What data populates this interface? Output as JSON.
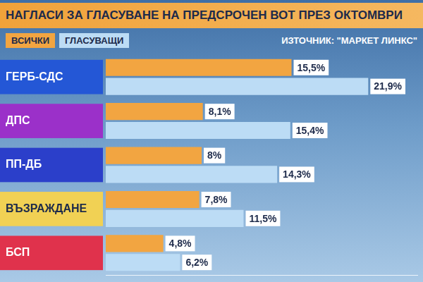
{
  "chart_data": {
    "type": "bar",
    "orientation": "horizontal",
    "title": "НАГЛАСИ ЗА ГЛАСУВАНЕ НА ПРЕДСРОЧЕН ВОТ ПРЕЗ ОКТОМВРИ",
    "source": "ИЗТОЧНИК: \"МАРКЕТ ЛИНКС\"",
    "categories": [
      "ГЕРБ-СДС",
      "ДПС",
      "ПП-ДБ",
      "ВЪЗРАЖДАНЕ",
      "БСП"
    ],
    "series": [
      {
        "name": "ВСИЧКИ",
        "color": "#f2a541",
        "values": [
          15.5,
          8.1,
          8,
          7.8,
          4.8
        ],
        "value_labels": [
          "15,5%",
          "8,1%",
          "8%",
          "7,8%",
          "4,8%"
        ]
      },
      {
        "name": "ГЛАСУВАЩИ",
        "color": "#bcdcf5",
        "values": [
          21.9,
          15.4,
          14.3,
          11.5,
          6.2
        ],
        "value_labels": [
          "21,9%",
          "15,4%",
          "14,3%",
          "11,5%",
          "6,2%"
        ]
      }
    ],
    "xlim": [
      0,
      26
    ],
    "xticks": [],
    "tick_labels": "y",
    "grid": false,
    "legend": "top-left",
    "data_labels": true
  }
}
